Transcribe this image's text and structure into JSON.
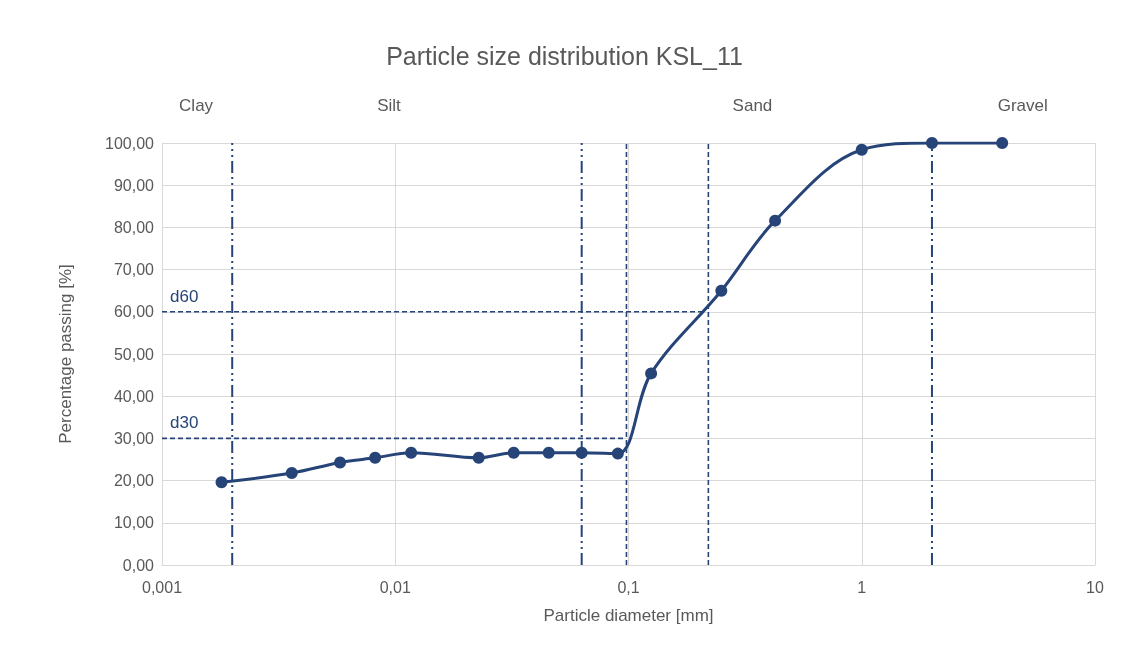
{
  "chart_data": {
    "type": "line",
    "title": "Particle size distribution KSL_11",
    "xlabel": "Particle diameter [mm]",
    "ylabel": "Percentage passing [%]",
    "log": "x",
    "marker": "circle",
    "grid": true,
    "xlim": [
      0.001,
      10
    ],
    "xticks": [
      {
        "value": 0.001,
        "label": "0,001"
      },
      {
        "value": 0.01,
        "label": "0,01"
      },
      {
        "value": 0.1,
        "label": "0,1"
      },
      {
        "value": 1,
        "label": "1"
      },
      {
        "value": 10,
        "label": "10"
      }
    ],
    "ylim": [
      0,
      100
    ],
    "yticks": [
      {
        "value": 0,
        "label": "0,00"
      },
      {
        "value": 10,
        "label": "10,00"
      },
      {
        "value": 20,
        "label": "20,00"
      },
      {
        "value": 30,
        "label": "30,00"
      },
      {
        "value": 40,
        "label": "40,00"
      },
      {
        "value": 50,
        "label": "50,00"
      },
      {
        "value": 60,
        "label": "60,00"
      },
      {
        "value": 70,
        "label": "70,00"
      },
      {
        "value": 80,
        "label": "80,00"
      },
      {
        "value": 90,
        "label": "90,00"
      },
      {
        "value": 100,
        "label": "100,00"
      }
    ],
    "series": [
      {
        "color": "#264478",
        "x": [
          0.0018,
          0.0036,
          0.0058,
          0.0082,
          0.0117,
          0.0228,
          0.0322,
          0.0455,
          0.063,
          0.09,
          0.125,
          0.25,
          0.425,
          1,
          2,
          4
        ],
        "values": [
          19.6,
          21.8,
          24.3,
          25.4,
          26.6,
          25.4,
          26.6,
          26.6,
          26.6,
          26.4,
          45.4,
          65.0,
          81.6,
          98.4,
          100,
          100
        ]
      }
    ],
    "ref_lines": [
      {
        "axis": "x",
        "value": 0.002,
        "color": "#264478",
        "line_style": "dashed"
      },
      {
        "axis": "x",
        "value": 0.063,
        "color": "#264478",
        "line_style": "dashed"
      },
      {
        "axis": "x",
        "value": 2,
        "color": "#264478",
        "line_style": "dashed"
      },
      {
        "axis": "y",
        "value": 60,
        "label": "d60",
        "color": "#264478",
        "line_style": "dotted"
      },
      {
        "axis": "y",
        "value": 30,
        "label": "d30",
        "color": "#264478",
        "line_style": "dotted"
      },
      {
        "axis": "x",
        "value": 0.22,
        "color": "#264478",
        "line_style": "dotted"
      },
      {
        "axis": "x",
        "value": 0.098,
        "color": "#264478",
        "line_style": "dotted"
      }
    ],
    "annotations": [
      "Clay",
      "Silt",
      "Sand",
      "Gravel"
    ]
  }
}
